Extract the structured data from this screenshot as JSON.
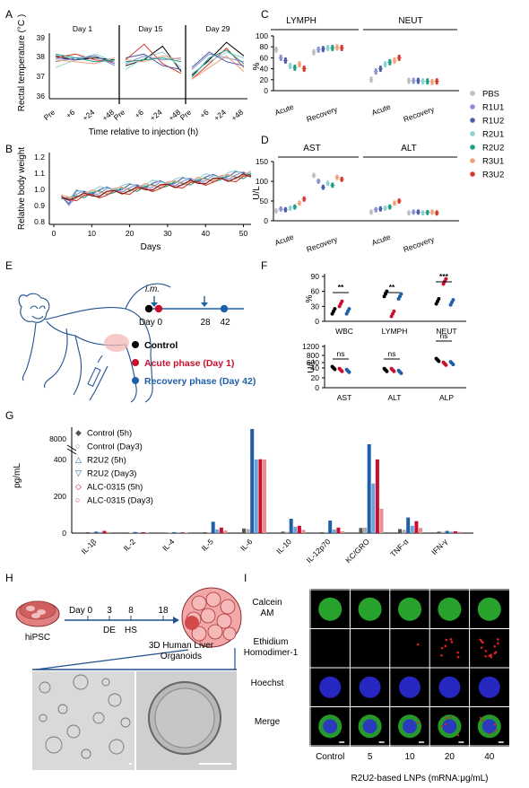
{
  "panels": {
    "A": {
      "label": "A",
      "ylabel": "Rectal temperature (°C )",
      "xlabel": "Time relative to injection (h)",
      "sub_titles": [
        "Day 1",
        "Day 15",
        "Day 29"
      ],
      "yticks": [
        "39",
        "38",
        "37",
        "36"
      ],
      "xticks": [
        "Pre",
        "+6",
        "+24",
        "+48"
      ]
    },
    "B": {
      "label": "B",
      "ylabel": "Relative body weight",
      "xlabel": "Days",
      "yticks": [
        "1.2",
        "1.1",
        "1.0",
        "0.9",
        "0.8"
      ],
      "xticks": [
        "0",
        "10",
        "20",
        "30",
        "40",
        "50"
      ]
    },
    "C": {
      "label": "C",
      "ylabel": "%",
      "groups": [
        "LYMPH",
        "NEUT"
      ],
      "yticks": [
        "100",
        "80",
        "60",
        "40",
        "20",
        "0"
      ],
      "xticks": [
        "Acute",
        "Recovery",
        "Acute",
        "Recovery"
      ]
    },
    "D": {
      "label": "D",
      "ylabel": "U/L",
      "groups": [
        "AST",
        "ALT"
      ],
      "yticks": [
        "150",
        "100",
        "50",
        "0"
      ],
      "xticks": [
        "Acute",
        "Recovery",
        "Acute",
        "Recovery"
      ]
    },
    "legend_CD": [
      "PBS",
      "R1U1",
      "R1U2",
      "R2U1",
      "R2U2",
      "R3U1",
      "R3U2"
    ],
    "legend_CD_colors": [
      "#bdbdbd",
      "#8a8fd6",
      "#4e5ea8",
      "#8fd1d1",
      "#1f9e86",
      "#f0a07a",
      "#d43b2a"
    ],
    "E": {
      "label": "E",
      "im": "i.m.",
      "timeline": [
        "Day 0",
        "28",
        "42"
      ],
      "legend": [
        "Control",
        "Acute phase (Day 1)",
        "Recovery phase (Day 42)"
      ],
      "legend_colors": [
        "#000000",
        "#c8102e",
        "#1f5fa8"
      ]
    },
    "F": {
      "label": "F",
      "top_ylabel": "%",
      "top_yticks": [
        "90",
        "60",
        "30",
        "0"
      ],
      "top_xticks": [
        "WBC",
        "LYMPH",
        "NEUT"
      ],
      "top_sig": [
        "**",
        "**",
        "***"
      ],
      "bot_ylabel": "U/L",
      "bot_yticks": [
        "1200",
        "800",
        "600",
        "40",
        "20",
        "0"
      ],
      "bot_xticks": [
        "AST",
        "ALT",
        "ALP"
      ],
      "bot_sig": [
        "ns",
        "ns",
        "ns"
      ]
    },
    "G": {
      "label": "G",
      "ylabel": "pg/mL",
      "yticks": [
        "8000",
        "400",
        "200",
        "0"
      ],
      "xticks": [
        "IL-1β",
        "IL-2",
        "IL-4",
        "IL-5",
        "IL-6",
        "IL-10",
        "IL-12p70",
        "KC/GRO",
        "TNF-α",
        "IFN-γ"
      ],
      "legend": [
        "Control (5h)",
        "Control (Day3)",
        "R2U2 (5h)",
        "R2U2 (Day3)",
        "ALC-0315 (5h)",
        "ALC-0315 (Day3)"
      ]
    },
    "H": {
      "label": "H",
      "cell": "hiPSC",
      "timeline": [
        "Day 0",
        "3",
        "8",
        "18"
      ],
      "stages": [
        "DE",
        "HS"
      ],
      "organoid_title": "3D Human Liver\nOrganoids"
    },
    "I": {
      "label": "I",
      "rows": [
        "Calcein\nAM",
        "Ethidium\nHomodimer-1",
        "Hoechst",
        "Merge"
      ],
      "cols": [
        "Control",
        "5",
        "10",
        "20",
        "40"
      ],
      "xlabel": "R2U2-based LNPs (mRNA:μg/mL)"
    }
  },
  "chart_data": [
    {
      "type": "line",
      "title": "",
      "xlabel": "Time relative to injection (h)",
      "ylabel": "Rectal temperature (°C )",
      "ylim": [
        36,
        39
      ],
      "categories": [
        "Pre",
        "+6",
        "+24",
        "+48"
      ],
      "subplots": [
        "Day 1",
        "Day 15",
        "Day 29"
      ]
    },
    {
      "type": "line",
      "title": "",
      "xlabel": "Days",
      "ylabel": "Relative body weight",
      "xlim": [
        0,
        52
      ],
      "ylim": [
        0.8,
        1.2
      ]
    },
    {
      "type": "scatter",
      "title": "",
      "ylabel": "%",
      "ylim": [
        0,
        100
      ],
      "groups": [
        "LYMPH",
        "NEUT"
      ],
      "categories": [
        "Acute",
        "Recovery"
      ],
      "series": [
        {
          "name": "PBS",
          "values": [
            75,
            70,
            20,
            18
          ]
        },
        {
          "name": "R1U1",
          "values": [
            60,
            75,
            35,
            18
          ]
        },
        {
          "name": "R1U2",
          "values": [
            55,
            76,
            40,
            18
          ]
        },
        {
          "name": "R2U1",
          "values": [
            45,
            78,
            48,
            17
          ]
        },
        {
          "name": "R2U2",
          "values": [
            42,
            78,
            52,
            17
          ]
        },
        {
          "name": "R3U1",
          "values": [
            48,
            79,
            55,
            16
          ]
        },
        {
          "name": "R3U2",
          "values": [
            40,
            78,
            60,
            17
          ]
        }
      ]
    },
    {
      "type": "scatter",
      "title": "",
      "ylabel": "U/L",
      "ylim": [
        0,
        150
      ],
      "groups": [
        "AST",
        "ALT"
      ],
      "categories": [
        "Acute",
        "Recovery"
      ],
      "series": [
        {
          "name": "PBS",
          "values": [
            25,
            115,
            22,
            20
          ]
        },
        {
          "name": "R1U1",
          "values": [
            30,
            100,
            28,
            22
          ]
        },
        {
          "name": "R1U2",
          "values": [
            28,
            85,
            30,
            22
          ]
        },
        {
          "name": "R2U1",
          "values": [
            32,
            95,
            32,
            20
          ]
        },
        {
          "name": "R2U2",
          "values": [
            35,
            90,
            35,
            21
          ]
        },
        {
          "name": "R3U1",
          "values": [
            45,
            110,
            45,
            22
          ]
        },
        {
          "name": "R3U2",
          "values": [
            55,
            105,
            50,
            20
          ]
        }
      ]
    },
    {
      "type": "scatter",
      "title": "",
      "ylabel": "%",
      "ylim": [
        0,
        90
      ],
      "categories": [
        "WBC",
        "LYMPH",
        "NEUT"
      ],
      "series": [
        {
          "name": "Control",
          "values": [
            20,
            55,
            40
          ]
        },
        {
          "name": "Acute phase (Day 1)",
          "values": [
            35,
            15,
            80
          ]
        },
        {
          "name": "Recovery phase (Day 42)",
          "values": [
            20,
            50,
            38
          ]
        }
      ]
    },
    {
      "type": "scatter",
      "title": "",
      "ylabel": "U/L",
      "categories": [
        "AST",
        "ALT",
        "ALP"
      ],
      "series": [
        {
          "name": "Control",
          "values": [
            40,
            36,
            700
          ]
        },
        {
          "name": "Acute phase (Day 1)",
          "values": [
            36,
            36,
            560
          ]
        },
        {
          "name": "Recovery phase (Day 42)",
          "values": [
            34,
            32,
            580
          ]
        }
      ]
    },
    {
      "type": "bar",
      "title": "",
      "ylabel": "pg/mL",
      "categories": [
        "IL-1β",
        "IL-2",
        "IL-4",
        "IL-5",
        "IL-6",
        "IL-10",
        "IL-12p70",
        "KC/GRO",
        "TNF-α",
        "IFN-γ"
      ],
      "series": [
        {
          "name": "Control (5h)",
          "values": [
            5,
            4,
            3,
            5,
            25,
            8,
            5,
            28,
            22,
            8
          ]
        },
        {
          "name": "Control (Day3)",
          "values": [
            5,
            3,
            3,
            4,
            22,
            7,
            5,
            30,
            18,
            7
          ]
        },
        {
          "name": "R2U2 (5h)",
          "values": [
            8,
            6,
            5,
            62,
            8600,
            78,
            68,
            4500,
            85,
            12
          ]
        },
        {
          "name": "R2U2 (Day3)",
          "values": [
            6,
            4,
            4,
            20,
            420,
            35,
            20,
            270,
            40,
            8
          ]
        },
        {
          "name": "ALC-0315 (5h)",
          "values": [
            12,
            5,
            4,
            30,
            470,
            40,
            30,
            430,
            65,
            10
          ]
        },
        {
          "name": "ALC-0315 (Day3)",
          "values": [
            6,
            4,
            3,
            14,
            410,
            18,
            10,
            132,
            28,
            7
          ]
        }
      ]
    }
  ]
}
